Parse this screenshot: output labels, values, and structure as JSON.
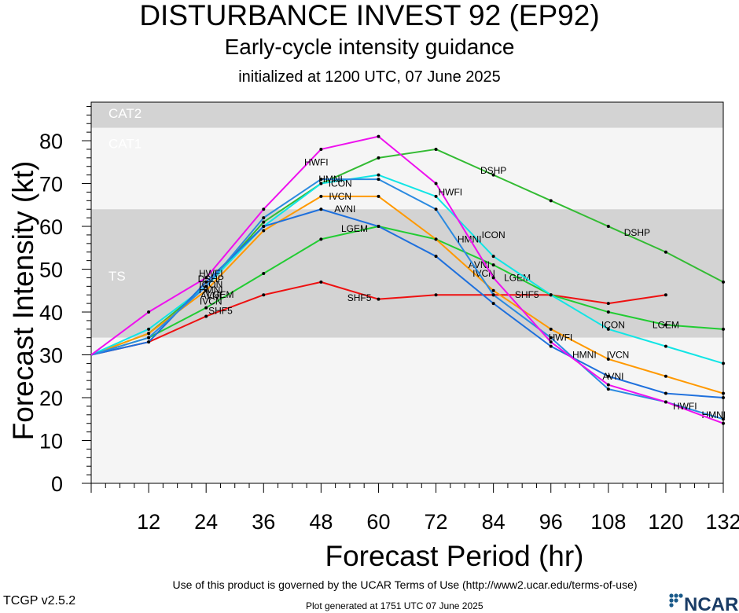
{
  "titles": {
    "main": "DISTURBANCE INVEST 92 (EP92)",
    "sub": "Early-cycle intensity guidance",
    "init": "initialized at 1200 UTC, 07 June 2025"
  },
  "footer": {
    "terms": "Use of this product is governed by the UCAR Terms of Use (http://www2.ucar.edu/terms-of-use)",
    "version": "TCGP v2.5.2",
    "generated": "Plot generated at 1751 UTC   07 June 2025",
    "logo": "NCAR"
  },
  "chart_data": {
    "type": "line",
    "xlabel": "Forecast Period (hr)",
    "ylabel": "Forecast Intensity (kt)",
    "xlim": [
      0,
      132
    ],
    "ylim": [
      0,
      89
    ],
    "xticks": [
      12,
      24,
      36,
      48,
      60,
      72,
      84,
      96,
      108,
      120,
      132
    ],
    "yticks": [
      0,
      10,
      20,
      30,
      40,
      50,
      60,
      70,
      80
    ],
    "bands": [
      {
        "name": "CAT2",
        "from": 83,
        "to": 89,
        "color": "#d3d3d3"
      },
      {
        "name": "CAT1",
        "from": 64,
        "to": 83,
        "color": "#f5f5f5"
      },
      {
        "name": "TS",
        "from": 34,
        "to": 64,
        "color": "#d3d3d3"
      },
      {
        "name": "",
        "from": 0,
        "to": 34,
        "color": "#f5f5f5"
      }
    ],
    "series": [
      {
        "name": "SHF5",
        "color": "#ee1111",
        "x": [
          0,
          12,
          24,
          36,
          48,
          60,
          72,
          84,
          96,
          108,
          120
        ],
        "values": [
          30,
          33,
          39,
          44,
          47,
          43,
          44,
          44,
          44,
          42,
          44
        ],
        "labels": [
          {
            "x": 27,
            "y": 40.3
          },
          {
            "x": 56,
            "y": 43.3
          },
          {
            "x": 91,
            "y": 44
          }
        ]
      },
      {
        "name": "LGEM",
        "color": "#22cc33",
        "x": [
          0,
          12,
          24,
          36,
          48,
          60,
          72,
          84,
          96,
          108,
          120,
          132
        ],
        "values": [
          30,
          34,
          41,
          49,
          57,
          60,
          57,
          51,
          44,
          40,
          37,
          36
        ],
        "labels": [
          {
            "x": 27,
            "y": 44
          },
          {
            "x": 55,
            "y": 59.5
          },
          {
            "x": 89,
            "y": 48
          },
          {
            "x": 120,
            "y": 37
          }
        ]
      },
      {
        "name": "DSHP",
        "color": "#33bb33",
        "x": [
          0,
          12,
          24,
          36,
          48,
          60,
          72,
          84,
          96,
          108,
          120,
          132
        ],
        "values": [
          30,
          35,
          46,
          61,
          70,
          76,
          78,
          72,
          66,
          60,
          54,
          47
        ],
        "labels": [
          {
            "x": 84,
            "y": 73
          },
          {
            "x": 114,
            "y": 58.5
          }
        ]
      },
      {
        "name": "IVCN",
        "color": "#ff9900",
        "x": [
          0,
          12,
          24,
          36,
          48,
          60,
          72,
          84,
          96,
          108,
          120,
          132
        ],
        "values": [
          30,
          35,
          45,
          59,
          67,
          67,
          57,
          45,
          36,
          29,
          25,
          21
        ],
        "labels": [
          {
            "x": 52,
            "y": 67
          },
          {
            "x": 82,
            "y": 49
          },
          {
            "x": 110,
            "y": 30
          }
        ]
      },
      {
        "name": "ICON",
        "color": "#11e5e5",
        "x": [
          0,
          12,
          24,
          36,
          48,
          60,
          72,
          84,
          96,
          108,
          120,
          132
        ],
        "values": [
          30,
          36,
          46,
          60,
          70,
          72,
          67,
          53,
          44,
          36,
          32,
          28
        ],
        "labels": [
          {
            "x": 52,
            "y": 70
          },
          {
            "x": 84,
            "y": 58
          },
          {
            "x": 109,
            "y": 37
          }
        ]
      },
      {
        "name": "AVNI",
        "color": "#1e70dd",
        "x": [
          0,
          12,
          24,
          36,
          48,
          60,
          72,
          84,
          96,
          108,
          120,
          132
        ],
        "values": [
          30,
          33,
          47,
          60,
          64,
          60,
          53,
          42,
          32,
          25,
          21,
          20
        ],
        "labels": [
          {
            "x": 53,
            "y": 64
          },
          {
            "x": 81,
            "y": 51
          },
          {
            "x": 109,
            "y": 25
          }
        ]
      },
      {
        "name": "HMNI",
        "color": "#2b8ae0",
        "x": [
          0,
          12,
          24,
          36,
          48,
          60,
          72,
          84,
          96,
          108,
          120,
          132
        ],
        "values": [
          30,
          34,
          46,
          62,
          71,
          71,
          64,
          44,
          34,
          22,
          19,
          15
        ],
        "labels": [
          {
            "x": 50,
            "y": 71
          },
          {
            "x": 79,
            "y": 57
          },
          {
            "x": 103,
            "y": 30
          },
          {
            "x": 130,
            "y": 16
          }
        ]
      },
      {
        "name": "HWFI",
        "color": "#ee11ee",
        "x": [
          0,
          12,
          24,
          36,
          48,
          60,
          72,
          84,
          96,
          108,
          120,
          132
        ],
        "values": [
          30,
          40,
          48,
          64,
          78,
          81,
          70,
          48,
          33,
          23,
          19,
          14
        ],
        "labels": [
          {
            "x": 47,
            "y": 75
          },
          {
            "x": 75,
            "y": 68
          },
          {
            "x": 98,
            "y": 34
          },
          {
            "x": 124,
            "y": 18
          }
        ]
      }
    ],
    "stacked_labels_24h": [
      "HWFI",
      "DSHP",
      "ICON",
      "HMNI",
      "AVNI",
      "IVCN"
    ]
  }
}
